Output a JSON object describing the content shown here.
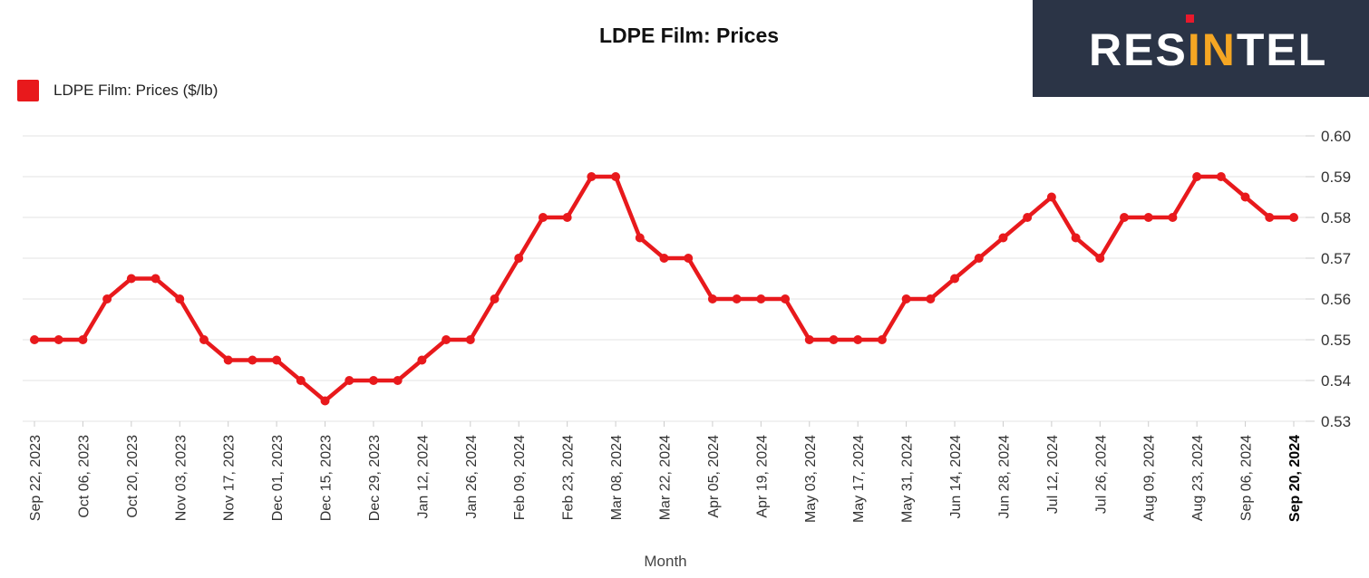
{
  "logo": {
    "text_before": "RES",
    "text_highlight": "IN",
    "text_after": "TEL",
    "highlight_color": "#f5a623",
    "accent_color": "#e8192c"
  },
  "chart_data": {
    "type": "line",
    "title": "LDPE Film: Prices",
    "xlabel": "Month",
    "ylabel": "",
    "ylim": [
      0.53,
      0.6
    ],
    "yticks": [
      "0.60",
      "0.59",
      "0.58",
      "0.57",
      "0.56",
      "0.55",
      "0.54",
      "0.53"
    ],
    "grid": true,
    "legend_position": "top-left",
    "tick_labels": [
      "Sep 22, 2023",
      "Oct 06, 2023",
      "Oct 20, 2023",
      "Nov 03, 2023",
      "Nov 17, 2023",
      "Dec 01, 2023",
      "Dec 15, 2023",
      "Dec 29, 2023",
      "Jan 12, 2024",
      "Jan 26, 2024",
      "Feb 09, 2024",
      "Feb 23, 2024",
      "Mar 08, 2024",
      "Mar 22, 2024",
      "Apr 05, 2024",
      "Apr 19, 2024",
      "May 03, 2024",
      "May 17, 2024",
      "May 31, 2024",
      "Jun 14, 2024",
      "Jun 28, 2024",
      "Jul 12, 2024",
      "Jul 26, 2024",
      "Aug 09, 2024",
      "Aug 23, 2024",
      "Sep 06, 2024",
      "Sep 20, 2024"
    ],
    "highlighted_tick": "Sep 20, 2024",
    "series": [
      {
        "name": "LDPE Film: Prices ($/lb)",
        "color": "#e8191c",
        "x": [
          "2023-09-22",
          "2023-09-29",
          "2023-10-06",
          "2023-10-13",
          "2023-10-20",
          "2023-10-27",
          "2023-11-03",
          "2023-11-10",
          "2023-11-17",
          "2023-11-24",
          "2023-12-01",
          "2023-12-08",
          "2023-12-15",
          "2023-12-22",
          "2023-12-29",
          "2024-01-05",
          "2024-01-12",
          "2024-01-19",
          "2024-01-26",
          "2024-02-02",
          "2024-02-09",
          "2024-02-16",
          "2024-02-23",
          "2024-03-01",
          "2024-03-08",
          "2024-03-15",
          "2024-03-22",
          "2024-03-29",
          "2024-04-05",
          "2024-04-12",
          "2024-04-19",
          "2024-04-26",
          "2024-05-03",
          "2024-05-10",
          "2024-05-17",
          "2024-05-24",
          "2024-05-31",
          "2024-06-07",
          "2024-06-14",
          "2024-06-21",
          "2024-06-28",
          "2024-07-05",
          "2024-07-12",
          "2024-07-19",
          "2024-07-26",
          "2024-08-02",
          "2024-08-09",
          "2024-08-16",
          "2024-08-23",
          "2024-08-30",
          "2024-09-06",
          "2024-09-13",
          "2024-09-20"
        ],
        "values": [
          0.55,
          0.55,
          0.55,
          0.56,
          0.565,
          0.565,
          0.56,
          0.55,
          0.545,
          0.545,
          0.545,
          0.54,
          0.535,
          0.54,
          0.54,
          0.54,
          0.545,
          0.55,
          0.55,
          0.56,
          0.57,
          0.58,
          0.58,
          0.59,
          0.59,
          0.575,
          0.57,
          0.57,
          0.56,
          0.56,
          0.56,
          0.56,
          0.55,
          0.55,
          0.55,
          0.55,
          0.56,
          0.56,
          0.565,
          0.57,
          0.575,
          0.58,
          0.585,
          0.575,
          0.57,
          0.58,
          0.58,
          0.58,
          0.59,
          0.59,
          0.585,
          0.58,
          0.58
        ]
      }
    ]
  }
}
